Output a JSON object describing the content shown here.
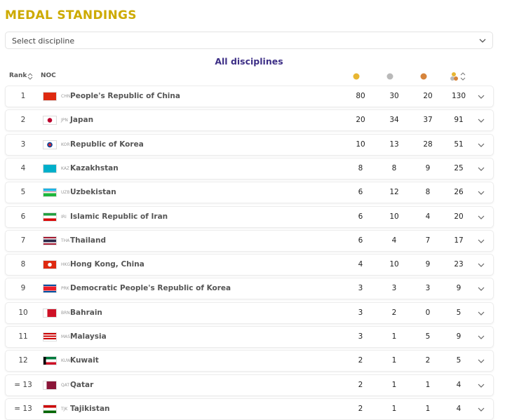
{
  "header": {
    "title": "MEDAL STANDINGS"
  },
  "filter": {
    "placeholder": "Select discipline"
  },
  "subtitle": "All disciplines",
  "table": {
    "columns": [
      "Rank",
      "NOC"
    ],
    "rows": [
      {
        "rank": 1,
        "code": "CHN",
        "name": "People's Republic of China",
        "gold": 80,
        "silver": 30,
        "bronze": 20,
        "total": 130
      },
      {
        "rank": 2,
        "code": "JPN",
        "name": "Japan",
        "gold": 20,
        "silver": 34,
        "bronze": 37,
        "total": 91
      },
      {
        "rank": 3,
        "code": "KOR",
        "name": "Republic of Korea",
        "gold": 10,
        "silver": 13,
        "bronze": 28,
        "total": 51
      },
      {
        "rank": 4,
        "code": "KAZ",
        "name": "Kazakhstan",
        "gold": 8,
        "silver": 8,
        "bronze": 9,
        "total": 25
      },
      {
        "rank": 5,
        "code": "UZB",
        "name": "Uzbekistan",
        "gold": 6,
        "silver": 12,
        "bronze": 8,
        "total": 26
      },
      {
        "rank": 6,
        "code": "IRI",
        "name": "Islamic Republic of Iran",
        "gold": 6,
        "silver": 10,
        "bronze": 4,
        "total": 20
      },
      {
        "rank": 7,
        "code": "THA",
        "name": "Thailand",
        "gold": 6,
        "silver": 4,
        "bronze": 7,
        "total": 17
      },
      {
        "rank": 8,
        "code": "HKG",
        "name": "Hong Kong, China",
        "gold": 4,
        "silver": 10,
        "bronze": 9,
        "total": 23
      },
      {
        "rank": 9,
        "code": "PRK",
        "name": "Democratic People's Republic of Korea",
        "gold": 3,
        "silver": 3,
        "bronze": 3,
        "total": 9
      },
      {
        "rank": 10,
        "code": "BRN",
        "name": "Bahrain",
        "gold": 3,
        "silver": 2,
        "bronze": 0,
        "total": 5
      },
      {
        "rank": 11,
        "code": "MAS",
        "name": "Malaysia",
        "gold": 3,
        "silver": 1,
        "bronze": 5,
        "total": 9
      },
      {
        "rank": 12,
        "code": "KUW",
        "name": "Kuwait",
        "gold": 2,
        "silver": 1,
        "bronze": 2,
        "total": 5
      },
      {
        "rank": "= 13",
        "code": "QAT",
        "name": "Qatar",
        "gold": 2,
        "silver": 1,
        "bronze": 1,
        "total": 4
      },
      {
        "rank": "= 13",
        "code": "TJK",
        "name": "Tajikistan",
        "gold": 2,
        "silver": 1,
        "bronze": 1,
        "total": 4
      }
    ]
  }
}
